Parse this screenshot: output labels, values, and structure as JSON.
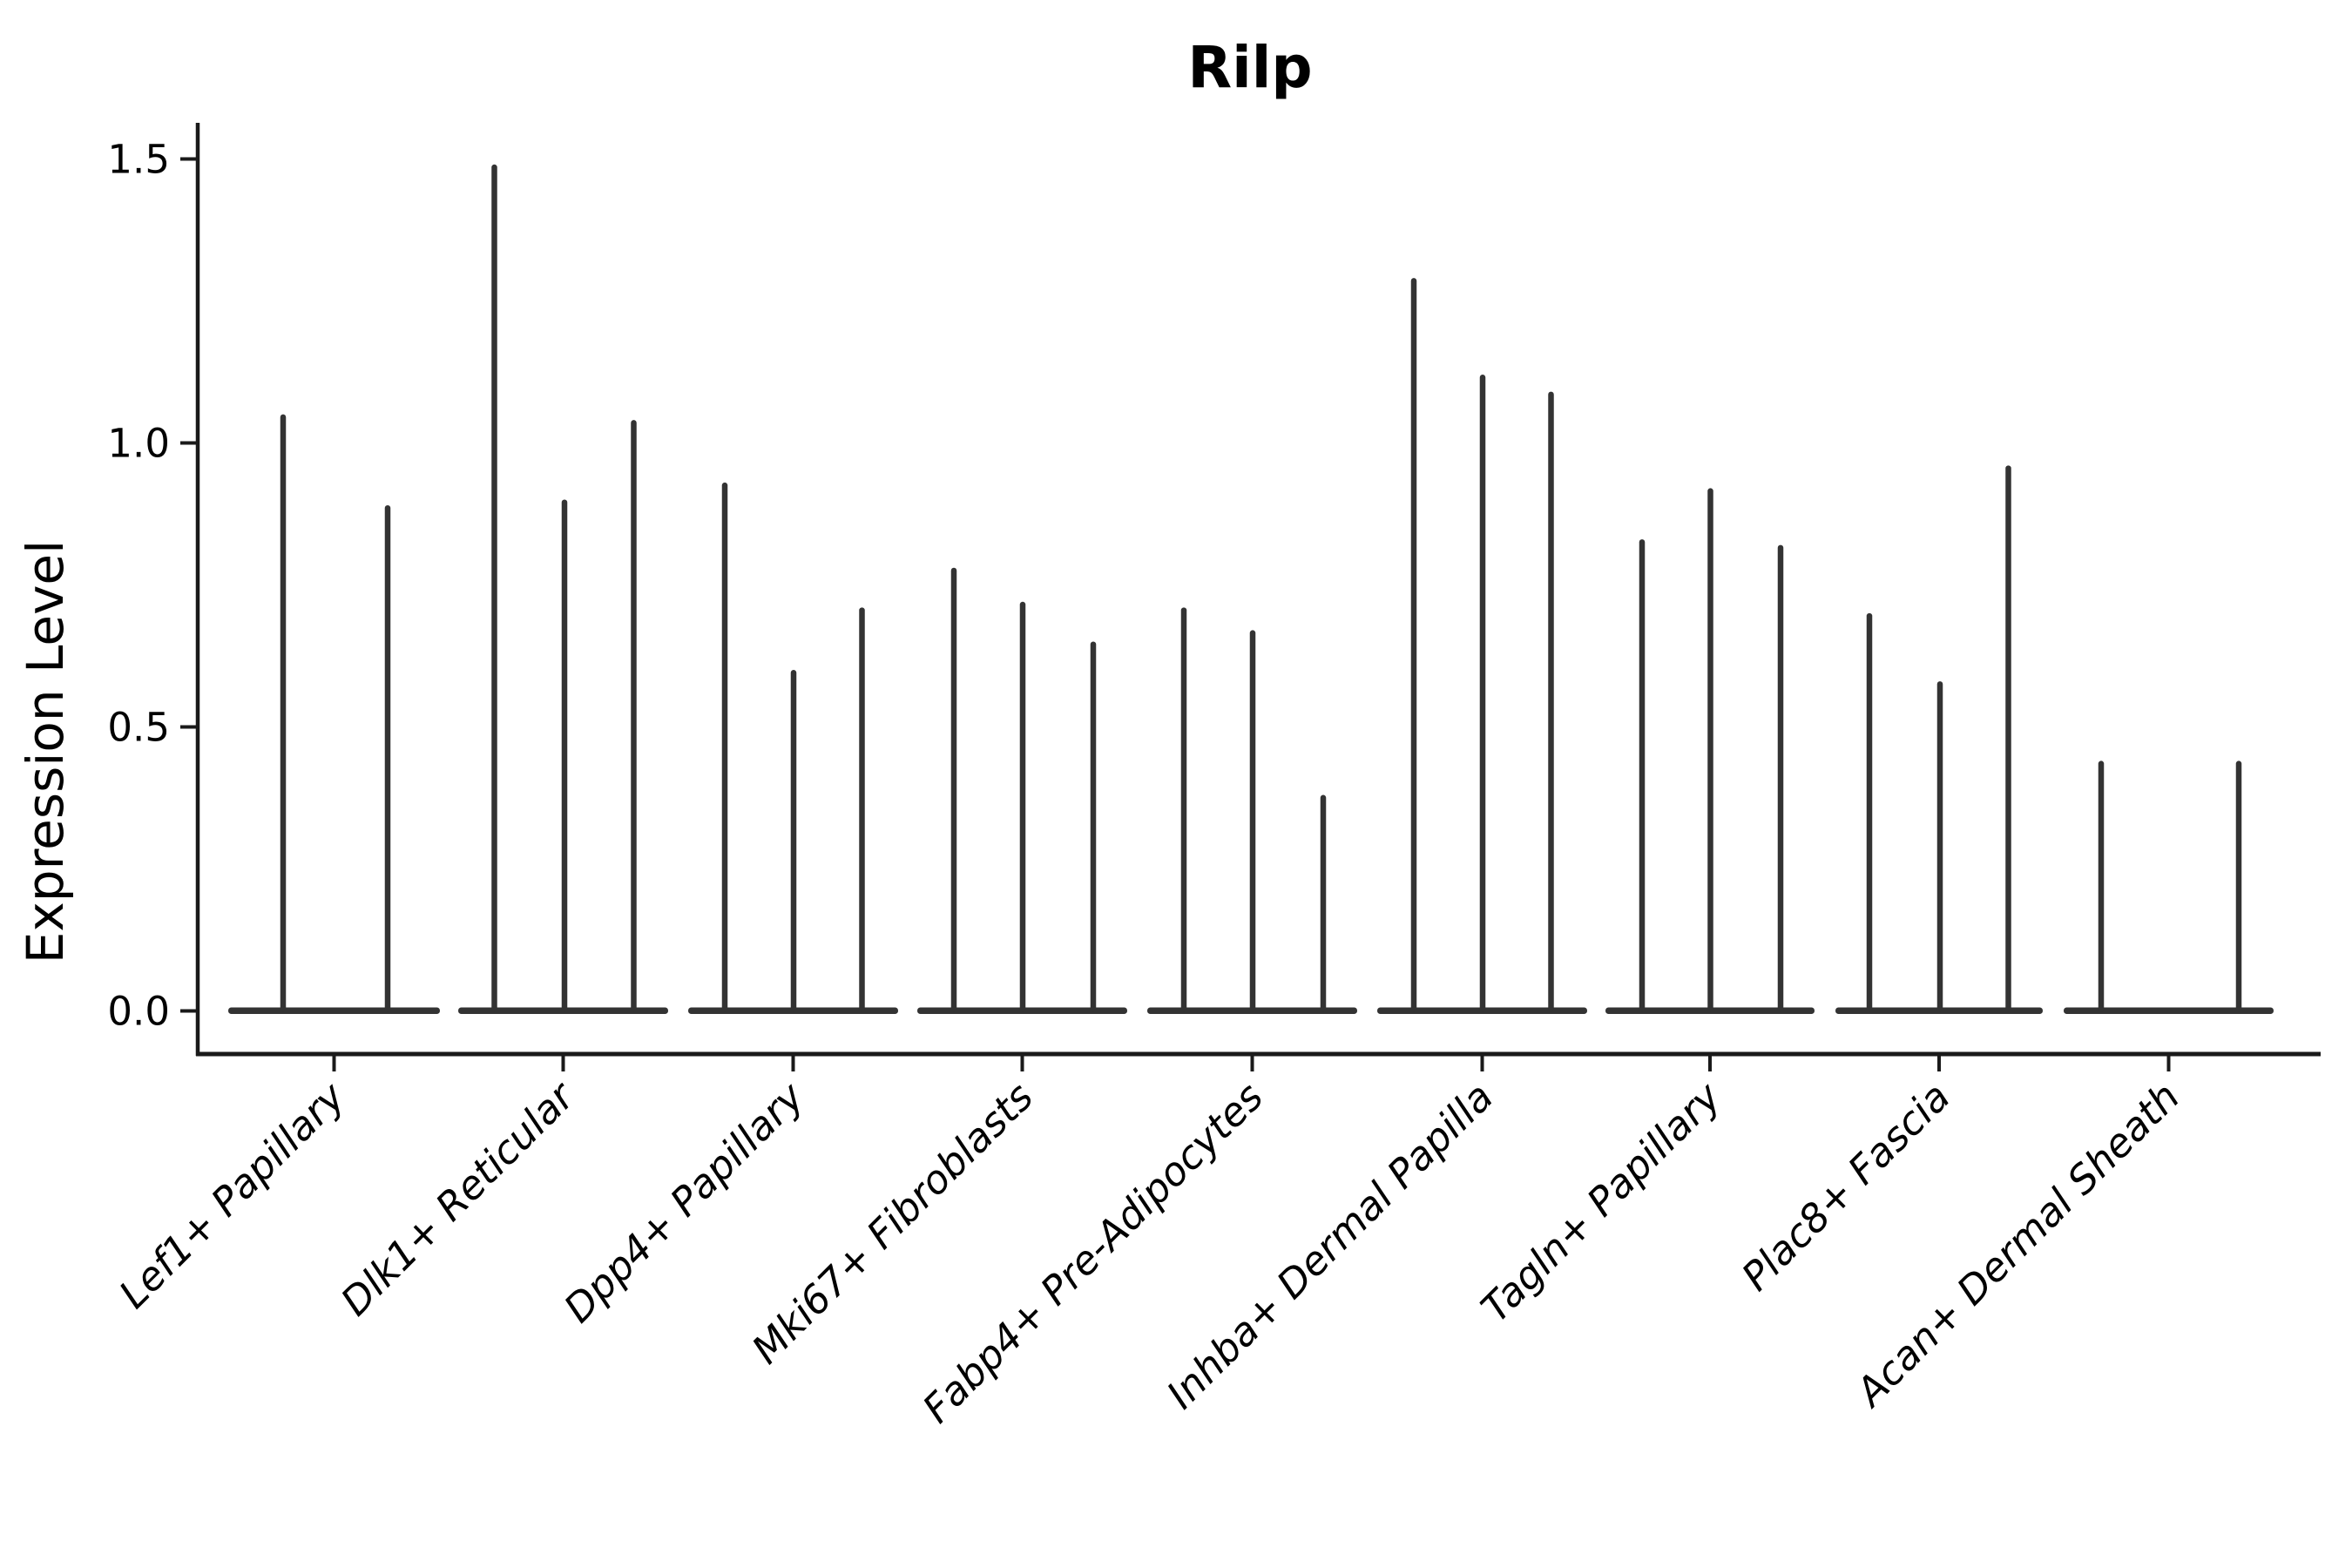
{
  "figure": {
    "background": "#ffffff",
    "title": "Rilp",
    "ylabel": "Expression Level"
  },
  "chart_data": {
    "type": "violin",
    "title": "Rilp",
    "xlabel": "",
    "ylabel": "Expression Level",
    "ylim": [
      -0.08,
      1.56
    ],
    "grid": false,
    "legend": "none",
    "violin_color": "#333333",
    "axis_color": "#1a1a1a",
    "ytick_values": [
      0.0,
      0.5,
      1.0,
      1.5
    ],
    "ytick_labels": [
      "0.0",
      "0.5",
      "1.0",
      "1.5"
    ],
    "xtick_rotation_degrees": 45,
    "categories": [
      "Lef1+ Papillary",
      "Dlk1+ Reticular",
      "Dpp4+ Papillary",
      "Mki67+ Fibroblasts",
      "Fabp4+ Pre-Adipocytes",
      "Inhba+ Dermal Papilla",
      "Tagln+ Papillary",
      "Plac8+ Fascia",
      "Acan+ Dermal Sheath"
    ],
    "groups": [
      {
        "label": "Lef1+ Papillary",
        "violin_peaks": [
          1.05,
          0.89
        ]
      },
      {
        "label": "Dlk1+ Reticular",
        "violin_peaks": [
          1.49,
          0.9,
          1.04
        ]
      },
      {
        "label": "Dpp4+ Papillary",
        "violin_peaks": [
          0.93,
          0.6,
          0.71
        ]
      },
      {
        "label": "Mki67+ Fibroblasts",
        "violin_peaks": [
          0.78,
          0.72,
          0.65
        ]
      },
      {
        "label": "Fabp4+ Pre-Adipocytes",
        "violin_peaks": [
          0.71,
          0.67,
          0.38
        ]
      },
      {
        "label": "Inhba+ Dermal Papilla",
        "violin_peaks": [
          1.29,
          1.12,
          1.09
        ]
      },
      {
        "label": "Tagln+ Papillary",
        "violin_peaks": [
          0.83,
          0.92,
          0.82
        ]
      },
      {
        "label": "Plac8+ Fascia",
        "violin_peaks": [
          0.7,
          0.58,
          0.96
        ]
      },
      {
        "label": "Acan+ Dermal Sheath",
        "violin_peaks": [
          0.44,
          0.44
        ]
      }
    ],
    "note": "Each violin is collapsed at expression 0 (flat base) with a thin spike rising to its maximum expression value."
  }
}
